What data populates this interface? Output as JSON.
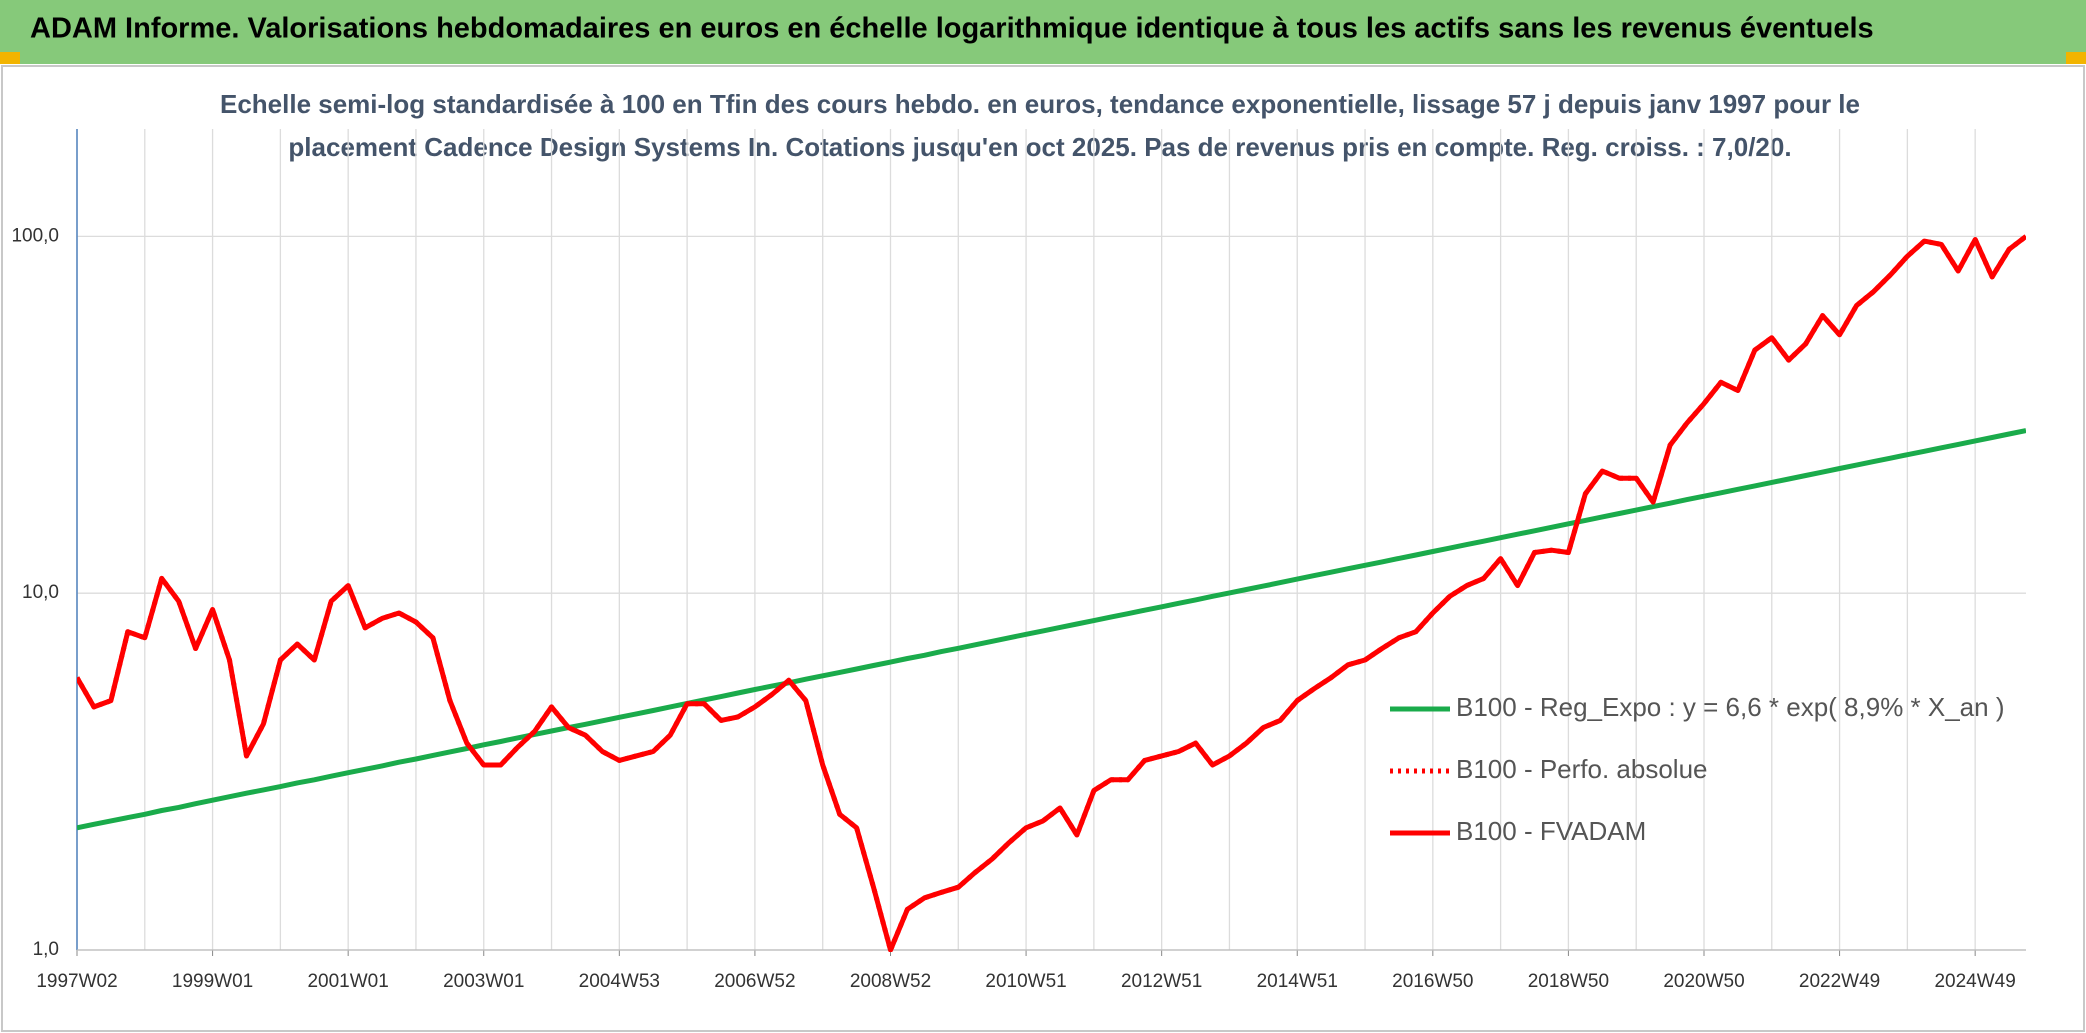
{
  "header": {
    "title": "ADAM Informe. Valorisations hebdomadaires en euros en échelle logarithmique identique à tous les actifs sans les revenus éventuels"
  },
  "chart_data": {
    "type": "line",
    "title": [
      "Echelle semi-log standardisée à 100 en Tfin des cours hebdo. en euros, tendance exponentielle, lissage 57 j depuis janv 1997 pour le",
      "placement Cadence Design Systems In. Cotations jusqu'en oct 2025. Pas de revenus pris en compte. Reg. croiss. : 7,0/20."
    ],
    "log_scale": true,
    "grid": true,
    "legend": "right",
    "categories": [
      "1997W02",
      null,
      null,
      null,
      null,
      null,
      null,
      null,
      "1999W01",
      null,
      null,
      null,
      null,
      null,
      null,
      null,
      "2001W01",
      null,
      null,
      null,
      null,
      null,
      null,
      null,
      "2003W01",
      null,
      null,
      null,
      null,
      null,
      null,
      null,
      "2004W53",
      null,
      null,
      null,
      null,
      null,
      null,
      null,
      "2006W52",
      null,
      null,
      null,
      null,
      null,
      null,
      null,
      "2008W52",
      null,
      null,
      null,
      null,
      null,
      null,
      null,
      "2010W51",
      null,
      null,
      null,
      null,
      null,
      null,
      null,
      "2012W51",
      null,
      null,
      null,
      null,
      null,
      null,
      null,
      "2014W51",
      null,
      null,
      null,
      null,
      null,
      null,
      null,
      "2016W50",
      null,
      null,
      null,
      null,
      null,
      null,
      null,
      "2018W50",
      null,
      null,
      null,
      null,
      null,
      null,
      null,
      "2020W50",
      null,
      null,
      null,
      null,
      null,
      null,
      null,
      "2022W49",
      null,
      null,
      null,
      null,
      null,
      null,
      null,
      "2024W49",
      null,
      null,
      null
    ],
    "ylim": [
      1,
      200
    ],
    "yticks": [
      {
        "value": 1,
        "label": "1,0"
      },
      {
        "value": 10,
        "label": "10,0"
      },
      {
        "value": 100,
        "label": "100,0"
      }
    ],
    "series": [
      {
        "name": "B100 - Reg_Expo : y = 6,6 * exp( 8,9% *  X_an )",
        "color": "#1aab4b",
        "style": "solid",
        "values": [
          2.2,
          2.25,
          2.3,
          2.35,
          2.4,
          2.46,
          2.51,
          2.57,
          2.63,
          2.69,
          2.75,
          2.81,
          2.87,
          2.94,
          3.0,
          3.07,
          3.14,
          3.21,
          3.28,
          3.36,
          3.43,
          3.51,
          3.59,
          3.67,
          3.76,
          3.84,
          3.93,
          4.02,
          4.11,
          4.2,
          4.29,
          4.39,
          4.49,
          4.59,
          4.69,
          4.8,
          4.91,
          5.02,
          5.13,
          5.25,
          5.37,
          5.49,
          5.61,
          5.74,
          5.87,
          6.0,
          6.13,
          6.27,
          6.41,
          6.56,
          6.7,
          6.86,
          7.01,
          7.17,
          7.33,
          7.5,
          7.67,
          7.84,
          8.02,
          8.2,
          8.38,
          8.57,
          8.76,
          8.96,
          9.16,
          9.37,
          9.58,
          9.8,
          10.02,
          10.24,
          10.47,
          10.71,
          10.95,
          11.2,
          11.45,
          11.71,
          11.97,
          12.24,
          12.52,
          12.8,
          13.09,
          13.38,
          13.68,
          13.99,
          14.31,
          14.63,
          14.96,
          15.3,
          15.65,
          16.0,
          16.36,
          16.73,
          17.1,
          17.49,
          17.88,
          18.29,
          18.7,
          19.12,
          19.55,
          19.99,
          20.44,
          20.9,
          21.37,
          21.85,
          22.36,
          22.86,
          23.38,
          23.9,
          24.44,
          24.99,
          25.55,
          26.13,
          26.72,
          27.32,
          27.93,
          28.56
        ]
      },
      {
        "name": "B100 - Perfo. absolue",
        "color": "#ff0000",
        "style": "dotted",
        "values": [
          5.8,
          4.8,
          5.0,
          7.8,
          7.5,
          11.0,
          9.5,
          7.0,
          9.0,
          6.5,
          3.5,
          4.3,
          6.5,
          7.2,
          6.5,
          9.5,
          10.5,
          8.0,
          8.5,
          8.8,
          8.3,
          7.5,
          5.0,
          3.8,
          3.3,
          3.3,
          3.7,
          4.1,
          4.8,
          4.2,
          4.0,
          3.6,
          3.4,
          3.5,
          3.6,
          4.0,
          4.9,
          4.9,
          4.4,
          4.5,
          4.8,
          5.2,
          5.7,
          5.0,
          3.3,
          2.4,
          2.2,
          1.5,
          1.0,
          1.3,
          1.4,
          1.45,
          1.5,
          1.65,
          1.8,
          2.0,
          2.2,
          2.3,
          2.5,
          2.1,
          2.8,
          3.0,
          3.0,
          3.4,
          3.5,
          3.6,
          3.8,
          3.3,
          3.5,
          3.8,
          4.2,
          4.4,
          5.0,
          5.4,
          5.8,
          6.3,
          6.5,
          7.0,
          7.5,
          7.8,
          8.8,
          9.8,
          10.5,
          11.0,
          12.5,
          10.5,
          13.0,
          13.2,
          13.0,
          19.0,
          22.0,
          21.0,
          21.0,
          18.0,
          26.0,
          30.0,
          34.0,
          39.0,
          37.0,
          48.0,
          52.0,
          45.0,
          50.0,
          60.0,
          53.0,
          64.0,
          70.0,
          78.0,
          88.0,
          97.0,
          95.0,
          80.0,
          98.0,
          77.0,
          92.0,
          100.0
        ]
      },
      {
        "name": "B100 - FVADAM",
        "color": "#ff0000",
        "style": "solid",
        "values": [
          5.8,
          4.8,
          5.0,
          7.8,
          7.5,
          11.0,
          9.5,
          7.0,
          9.0,
          6.5,
          3.5,
          4.3,
          6.5,
          7.2,
          6.5,
          9.5,
          10.5,
          8.0,
          8.5,
          8.8,
          8.3,
          7.5,
          5.0,
          3.8,
          3.3,
          3.3,
          3.7,
          4.1,
          4.8,
          4.2,
          4.0,
          3.6,
          3.4,
          3.5,
          3.6,
          4.0,
          4.9,
          4.9,
          4.4,
          4.5,
          4.8,
          5.2,
          5.7,
          5.0,
          3.3,
          2.4,
          2.2,
          1.5,
          1.0,
          1.3,
          1.4,
          1.45,
          1.5,
          1.65,
          1.8,
          2.0,
          2.2,
          2.3,
          2.5,
          2.1,
          2.8,
          3.0,
          3.0,
          3.4,
          3.5,
          3.6,
          3.8,
          3.3,
          3.5,
          3.8,
          4.2,
          4.4,
          5.0,
          5.4,
          5.8,
          6.3,
          6.5,
          7.0,
          7.5,
          7.8,
          8.8,
          9.8,
          10.5,
          11.0,
          12.5,
          10.5,
          13.0,
          13.2,
          13.0,
          19.0,
          22.0,
          21.0,
          21.0,
          18.0,
          26.0,
          30.0,
          34.0,
          39.0,
          37.0,
          48.0,
          52.0,
          45.0,
          50.0,
          60.0,
          53.0,
          64.0,
          70.0,
          78.0,
          88.0,
          97.0,
          95.0,
          80.0,
          98.0,
          77.0,
          92.0,
          100.0
        ]
      }
    ]
  }
}
